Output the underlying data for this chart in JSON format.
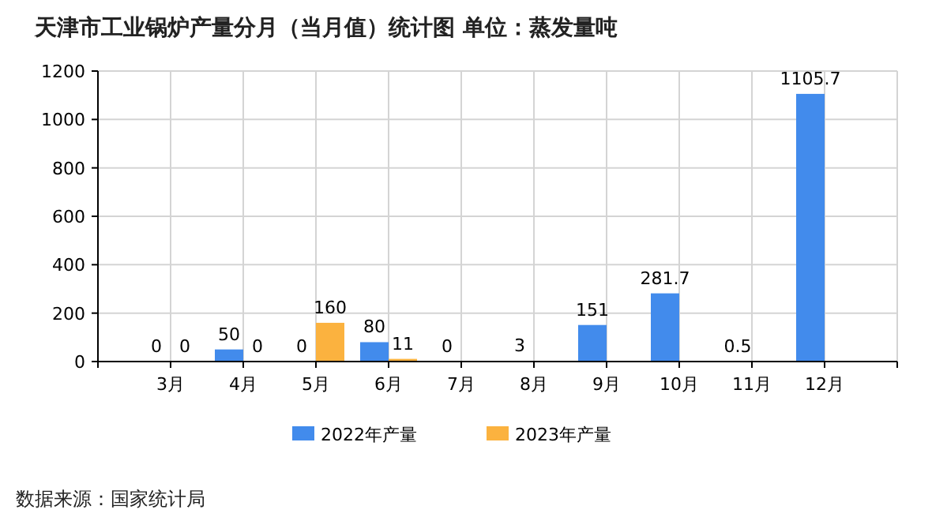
{
  "chart_data": {
    "type": "bar",
    "title": "天津市工业锅炉产量分月（当月值）统计图 单位：蒸发量吨",
    "categories": [
      "3月",
      "4月",
      "5月",
      "6月",
      "7月",
      "8月",
      "9月",
      "10月",
      "11月",
      "12月"
    ],
    "series": [
      {
        "name": "2022年产量",
        "color": "#428bec",
        "values": [
          0,
          50,
          0,
          80,
          0,
          3,
          151,
          281.7,
          0.5,
          1105.7
        ]
      },
      {
        "name": "2023年产量",
        "color": "#fbb23f",
        "values": [
          0,
          0,
          160,
          11,
          null,
          null,
          null,
          null,
          null,
          null
        ]
      }
    ],
    "ylim": [
      0,
      1200
    ],
    "yticks": [
      0,
      200,
      400,
      600,
      800,
      1000,
      1200
    ],
    "grid": true,
    "legend": "bottom",
    "data_labels": true,
    "annotations": [
      "数据来源：国家统计局"
    ]
  }
}
